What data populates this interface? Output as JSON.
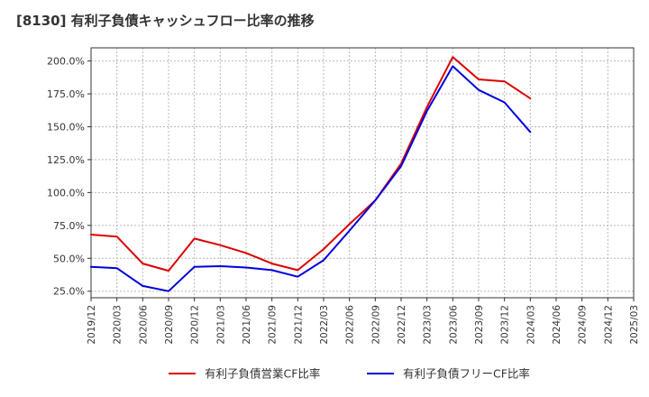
{
  "chart_data": {
    "type": "line",
    "title": "[8130]  有利子負債キャッシュフロー比率の推移",
    "x": [
      "2019/12",
      "2020/03",
      "2020/06",
      "2020/09",
      "2020/12",
      "2021/03",
      "2021/06",
      "2021/09",
      "2021/12",
      "2022/03",
      "2022/06",
      "2022/09",
      "2022/12",
      "2023/03",
      "2023/06",
      "2023/09",
      "2023/12",
      "2024/03",
      "2024/06",
      "2024/09",
      "2024/12",
      "2025/03"
    ],
    "series": [
      {
        "name": "有利子負債営業CF比率",
        "color": "#dd0000",
        "values": [
          68.0,
          66.5,
          46.0,
          40.5,
          65.0,
          60.0,
          54.0,
          46.0,
          41.0,
          57.0,
          76.0,
          94.0,
          122.0,
          165.0,
          203.0,
          186.0,
          184.5,
          171.5,
          null,
          null,
          null,
          null
        ]
      },
      {
        "name": "有利子負債フリーCF比率",
        "color": "#0000dd",
        "values": [
          43.5,
          42.5,
          29.0,
          25.0,
          43.5,
          44.0,
          43.0,
          41.0,
          36.0,
          48.5,
          71.0,
          94.0,
          120.0,
          162.0,
          196.0,
          178.0,
          168.5,
          146.0,
          null,
          null,
          null,
          null
        ]
      }
    ],
    "ylim": [
      20.0,
      210.0
    ],
    "yticks": [
      25.0,
      50.0,
      75.0,
      100.0,
      125.0,
      150.0,
      175.0,
      200.0
    ],
    "ytick_labels": [
      "25.0%",
      "50.0%",
      "75.0%",
      "100.0%",
      "125.0%",
      "150.0%",
      "175.0%",
      "200.0%"
    ],
    "grid": true,
    "legend_position": "bottom"
  }
}
